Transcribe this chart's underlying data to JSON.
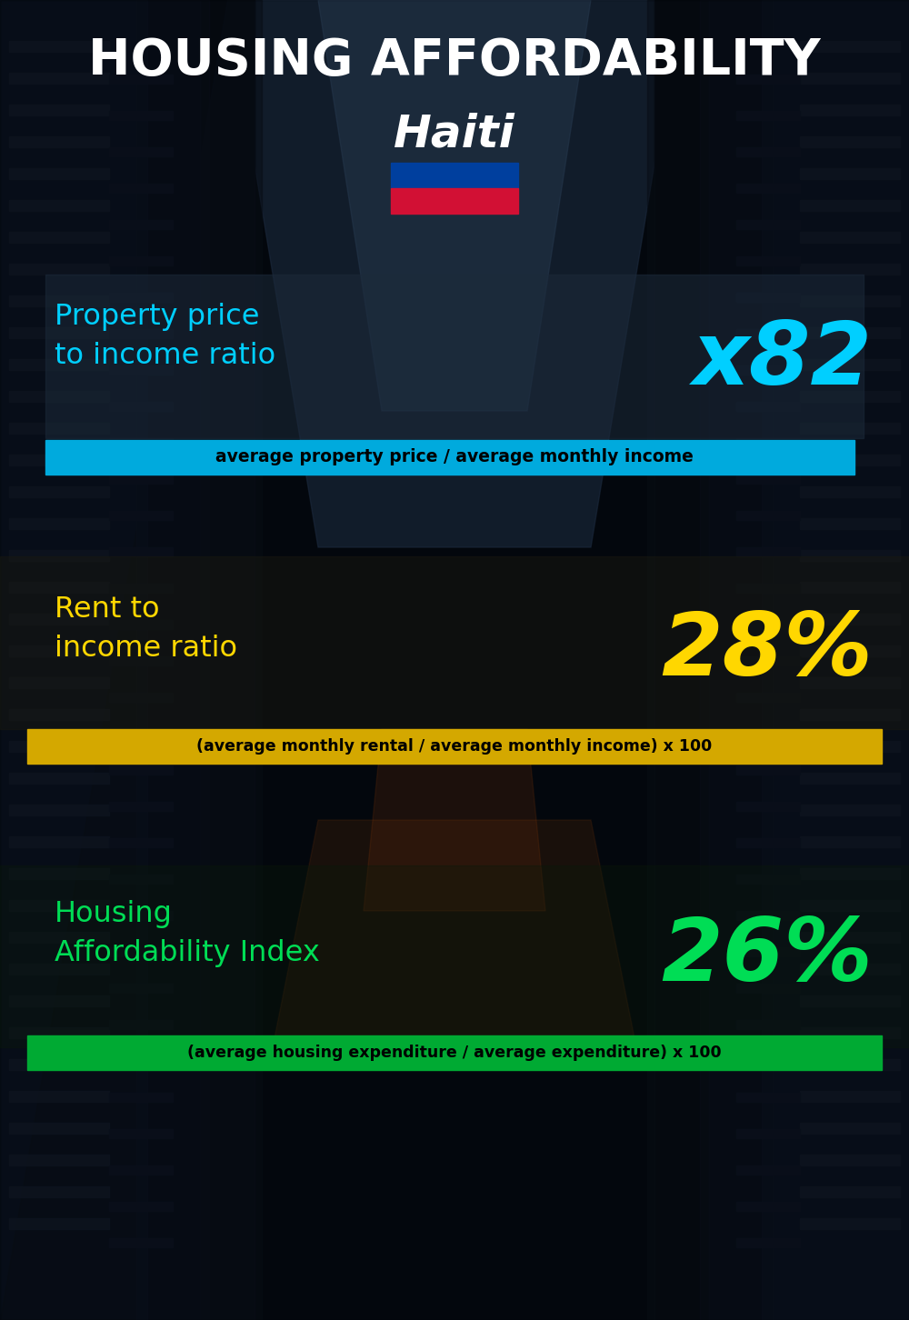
{
  "title_main": "HOUSING AFFORDABILITY",
  "title_country": "Haiti",
  "bg_color": "#060c14",
  "section1_label": "Property price\nto income ratio",
  "section1_value": "x82",
  "section1_label_color": "#00cfff",
  "section1_value_color": "#00cfff",
  "section1_banner": "average property price / average monthly income",
  "section1_banner_bg": "#00aadd",
  "section2_label": "Rent to\nincome ratio",
  "section2_value": "28%",
  "section2_label_color": "#ffd700",
  "section2_value_color": "#ffd700",
  "section2_banner": "(average monthly rental / average monthly income) x 100",
  "section2_banner_bg": "#d4a800",
  "section3_label": "Housing\nAffordability Index",
  "section3_value": "26%",
  "section3_label_color": "#00dd55",
  "section3_value_color": "#00dd55",
  "section3_banner": "(average housing expenditure / average expenditure) x 100",
  "section3_banner_bg": "#00aa33",
  "flag_blue": "#003f9e",
  "flag_red": "#d21034",
  "panel_color": "#101820",
  "panel_alpha": 0.6
}
